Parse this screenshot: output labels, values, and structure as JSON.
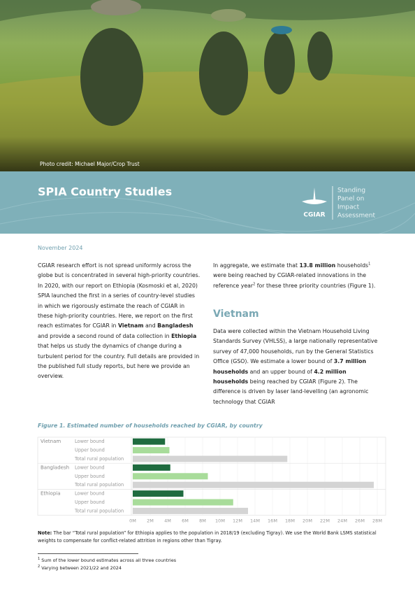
{
  "photo": {
    "credit": "Photo credit: Michael Major/Crop Trust"
  },
  "banner": {
    "title": "SPIA Country Studies",
    "logo": "CGIAR",
    "panel": [
      "Standing",
      "Panel on",
      "Impact",
      "Assessment"
    ]
  },
  "date": "November 2024",
  "intro": [
    "CGIAR research effort is not spread uniformly across the globe but is concentrated in several high-priority countries. In 2020, with our report on Ethiopia (Kosmoski et al, 2020) SPIA launched the first in a series of country-level studies in which we rigorously estimate the reach of CGIAR in these high-priority countries. Here, we report on the first reach estimates for CGIAR in ",
    "Vietnam",
    " and ",
    "Bangladesh",
    " and provide a second round of data collection in ",
    "Ethiopia",
    " that helps us study the dynamics of change during a turbulent period for the country. Full details are provided in the published full study reports, but here we provide an overview."
  ],
  "aggregate": [
    "In aggregate, we estimate that ",
    "13.8 million",
    " households",
    "1",
    " were being reached by CGIAR-related innovations in the reference year",
    "2",
    " for these three priority countries (Figure 1)."
  ],
  "vietnam": {
    "heading": "Vietnam",
    "text": [
      "Data were collected within the Vietnam Household Living Standards Survey (VHLSS), a large nationally representative survey of 47,000 households, run by the General Statistics Office (GSO). We estimate a lower bound of ",
      "3.7 million households",
      " and an upper bound of ",
      "4.2 million households",
      " being reached by CGIAR (Figure 2). The difference is driven by laser land-levelling (an agronomic technology that CGIAR"
    ]
  },
  "chart_data": {
    "type": "bar",
    "orientation": "horizontal",
    "title": "Figure 1. Estimated number of households reached by CGIAR, by country",
    "categories": [
      "Vietnam",
      "Bangladesh",
      "Ethiopia"
    ],
    "series": [
      {
        "name": "Lower bound",
        "color": "#1f6b3f",
        "values": [
          3.7,
          4.3,
          5.8
        ]
      },
      {
        "name": "Upper bound",
        "color": "#a8dc9a",
        "values": [
          4.2,
          8.6,
          11.5
        ]
      },
      {
        "name": "Total rural population",
        "color": "#d4d4d4",
        "values": [
          17.7,
          27.6,
          13.2
        ]
      }
    ],
    "xlim": [
      0,
      28
    ],
    "xticks": [
      {
        "value": 0,
        "label": "0M"
      },
      {
        "value": 2,
        "label": "2M"
      },
      {
        "value": 4,
        "label": "4M"
      },
      {
        "value": 6,
        "label": "6M"
      },
      {
        "value": 8,
        "label": "8M"
      },
      {
        "value": 10,
        "label": "10M"
      },
      {
        "value": 12,
        "label": "12M"
      },
      {
        "value": 14,
        "label": "14M"
      },
      {
        "value": 16,
        "label": "16M"
      },
      {
        "value": 18,
        "label": "18M"
      },
      {
        "value": 20,
        "label": "20M"
      },
      {
        "value": 22,
        "label": "22M"
      },
      {
        "value": 24,
        "label": "24M"
      },
      {
        "value": 26,
        "label": "26M"
      },
      {
        "value": 28,
        "label": "28M"
      }
    ],
    "grid": true
  },
  "note": [
    "Note:",
    " The bar “Total rural population” for Ethiopia applies to the population in 2018/19 (excluding Tigray). We use the World Bank LSMS statistical weights to compensate for conflict-related attrition in regions other than Tigray."
  ],
  "footnotes": [
    {
      "mark": "1",
      "text": "Sum of the lower bound estimates across all three countries"
    },
    {
      "mark": "2",
      "text": "Varying between 2021/22 and 2024"
    }
  ]
}
